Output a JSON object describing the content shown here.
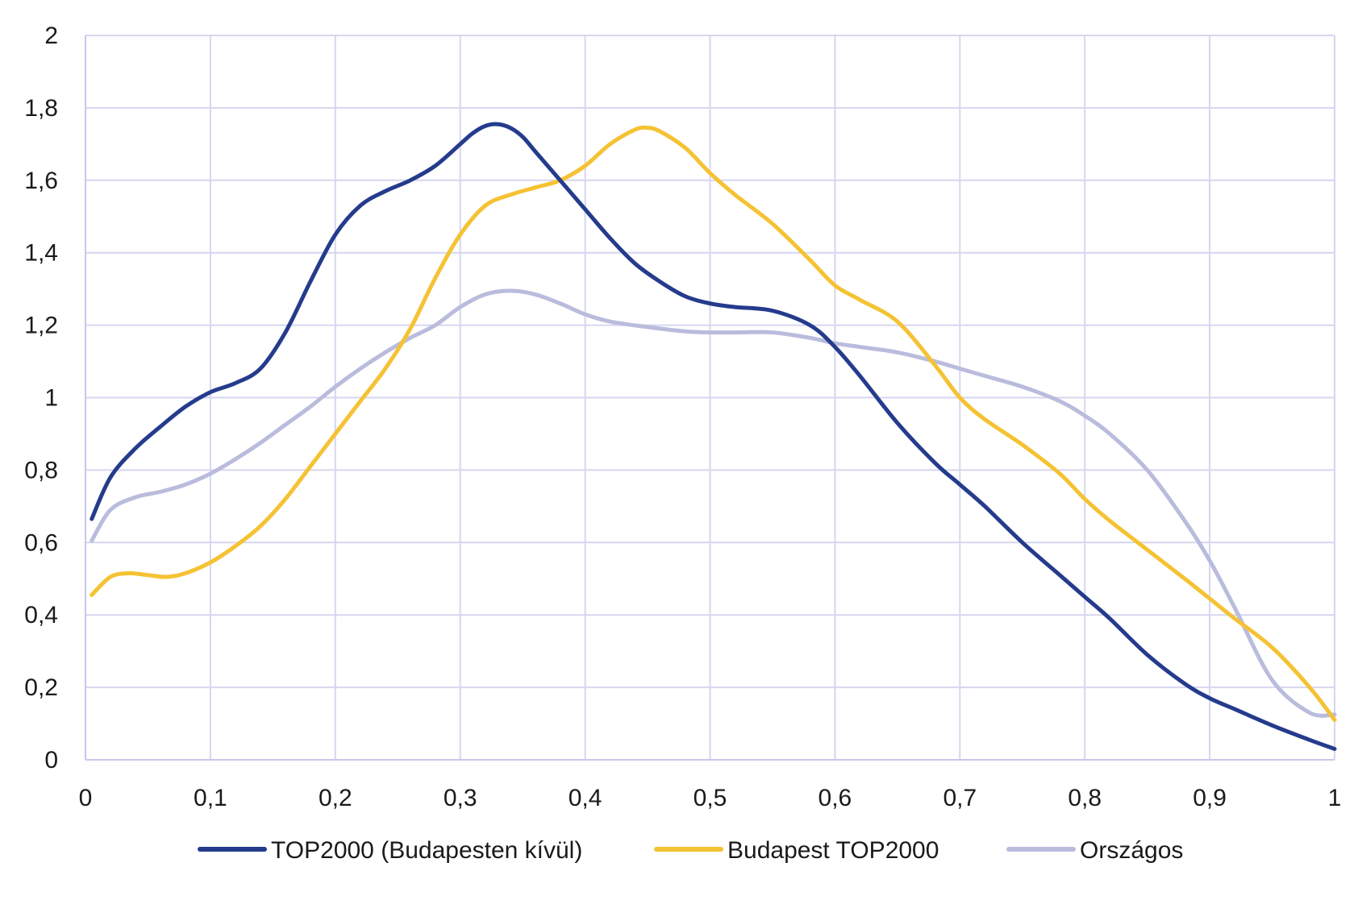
{
  "chart_data": {
    "type": "line",
    "title": "",
    "xlabel": "",
    "ylabel": "",
    "xlim": [
      0,
      1
    ],
    "ylim": [
      0,
      2
    ],
    "x_ticks": [
      0,
      0.1,
      0.2,
      0.3,
      0.4,
      0.5,
      0.6,
      0.7,
      0.8,
      0.9,
      1
    ],
    "x_tick_labels": [
      "0",
      "0,1",
      "0,2",
      "0,3",
      "0,4",
      "0,5",
      "0,6",
      "0,7",
      "0,8",
      "0,9",
      "1"
    ],
    "y_ticks": [
      0,
      0.2,
      0.4,
      0.6,
      0.8,
      1,
      1.2,
      1.4,
      1.6,
      1.8,
      2
    ],
    "y_tick_labels": [
      "0",
      "0,2",
      "0,4",
      "0,6",
      "0,8",
      "1",
      "1,2",
      "1,4",
      "1,6",
      "1,8",
      "2"
    ],
    "grid": true,
    "legend_position": "bottom",
    "series": [
      {
        "name": "TOP2000 (Budapesten kívül)",
        "color": "#253b8c",
        "x": [
          0.005,
          0.02,
          0.04,
          0.06,
          0.08,
          0.1,
          0.12,
          0.14,
          0.16,
          0.18,
          0.2,
          0.22,
          0.24,
          0.26,
          0.28,
          0.3,
          0.31,
          0.32,
          0.33,
          0.34,
          0.35,
          0.36,
          0.38,
          0.4,
          0.42,
          0.44,
          0.46,
          0.48,
          0.5,
          0.52,
          0.55,
          0.58,
          0.6,
          0.62,
          0.65,
          0.68,
          0.7,
          0.72,
          0.75,
          0.78,
          0.8,
          0.82,
          0.85,
          0.88,
          0.9,
          0.92,
          0.95,
          0.98,
          1.0
        ],
        "values": [
          0.665,
          0.78,
          0.86,
          0.92,
          0.975,
          1.015,
          1.04,
          1.08,
          1.18,
          1.32,
          1.45,
          1.53,
          1.57,
          1.6,
          1.64,
          1.7,
          1.73,
          1.75,
          1.755,
          1.745,
          1.72,
          1.68,
          1.6,
          1.52,
          1.44,
          1.37,
          1.32,
          1.28,
          1.26,
          1.25,
          1.24,
          1.2,
          1.14,
          1.06,
          0.93,
          0.82,
          0.76,
          0.7,
          0.6,
          0.51,
          0.45,
          0.39,
          0.29,
          0.21,
          0.17,
          0.14,
          0.095,
          0.055,
          0.03
        ]
      },
      {
        "name": "Budapest TOP2000",
        "color": "#f5c233",
        "x": [
          0.005,
          0.02,
          0.035,
          0.05,
          0.065,
          0.08,
          0.1,
          0.12,
          0.14,
          0.16,
          0.18,
          0.2,
          0.22,
          0.24,
          0.26,
          0.28,
          0.3,
          0.32,
          0.34,
          0.36,
          0.38,
          0.4,
          0.42,
          0.44,
          0.45,
          0.46,
          0.48,
          0.5,
          0.52,
          0.55,
          0.58,
          0.6,
          0.62,
          0.65,
          0.68,
          0.7,
          0.72,
          0.75,
          0.78,
          0.8,
          0.82,
          0.85,
          0.88,
          0.9,
          0.92,
          0.95,
          0.98,
          1.0
        ],
        "values": [
          0.455,
          0.505,
          0.515,
          0.51,
          0.505,
          0.515,
          0.545,
          0.59,
          0.645,
          0.72,
          0.81,
          0.9,
          0.99,
          1.08,
          1.19,
          1.33,
          1.45,
          1.53,
          1.56,
          1.58,
          1.6,
          1.64,
          1.7,
          1.74,
          1.745,
          1.735,
          1.69,
          1.62,
          1.56,
          1.48,
          1.38,
          1.31,
          1.27,
          1.21,
          1.09,
          1.0,
          0.94,
          0.87,
          0.79,
          0.72,
          0.66,
          0.58,
          0.5,
          0.445,
          0.39,
          0.31,
          0.2,
          0.11
        ]
      },
      {
        "name": "Országos",
        "color": "#b9bcdc",
        "x": [
          0.005,
          0.02,
          0.04,
          0.06,
          0.08,
          0.1,
          0.12,
          0.14,
          0.16,
          0.18,
          0.2,
          0.22,
          0.24,
          0.26,
          0.28,
          0.3,
          0.32,
          0.34,
          0.36,
          0.38,
          0.4,
          0.42,
          0.45,
          0.48,
          0.5,
          0.52,
          0.55,
          0.58,
          0.6,
          0.62,
          0.65,
          0.68,
          0.7,
          0.72,
          0.75,
          0.78,
          0.8,
          0.82,
          0.85,
          0.88,
          0.9,
          0.92,
          0.95,
          0.98,
          1.0
        ],
        "values": [
          0.605,
          0.69,
          0.725,
          0.74,
          0.76,
          0.79,
          0.83,
          0.875,
          0.925,
          0.975,
          1.03,
          1.08,
          1.125,
          1.165,
          1.2,
          1.25,
          1.285,
          1.295,
          1.285,
          1.26,
          1.23,
          1.21,
          1.195,
          1.183,
          1.18,
          1.18,
          1.18,
          1.165,
          1.15,
          1.14,
          1.125,
          1.1,
          1.08,
          1.06,
          1.03,
          0.99,
          0.95,
          0.9,
          0.8,
          0.66,
          0.55,
          0.42,
          0.22,
          0.13,
          0.125
        ]
      }
    ]
  }
}
